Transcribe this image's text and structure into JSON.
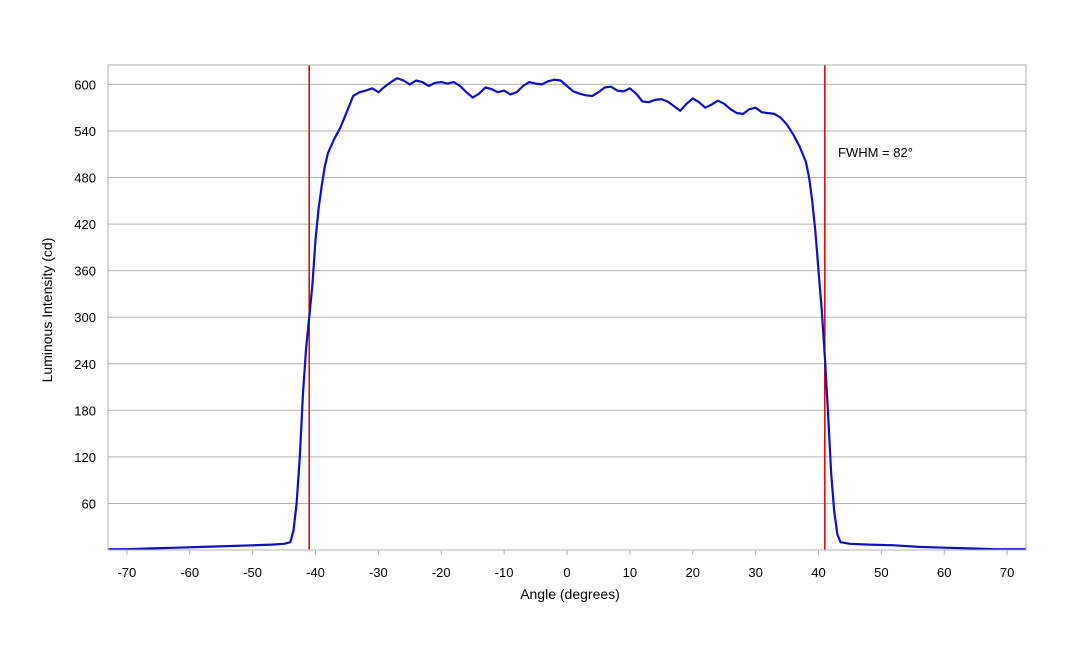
{
  "chart_data": {
    "type": "line",
    "title": "",
    "xlabel": "Angle (degrees)",
    "ylabel": "Luminous Intensity (cd)",
    "xlim": [
      -73,
      73
    ],
    "ylim": [
      0,
      625
    ],
    "x_ticks": [
      -70,
      -60,
      -50,
      -40,
      -30,
      -20,
      -10,
      0,
      10,
      20,
      30,
      40,
      50,
      60,
      70
    ],
    "y_ticks": [
      60,
      120,
      180,
      240,
      300,
      360,
      420,
      480,
      540,
      600
    ],
    "grid": "horizontal",
    "legend": "none",
    "series": [
      {
        "color": "#1010c0",
        "points": [
          [
            -73,
            1
          ],
          [
            -70,
            1
          ],
          [
            -66,
            2
          ],
          [
            -62,
            3
          ],
          [
            -58,
            4
          ],
          [
            -54,
            5
          ],
          [
            -50,
            6
          ],
          [
            -47,
            7
          ],
          [
            -45,
            8
          ],
          [
            -44,
            10
          ],
          [
            -43.5,
            25
          ],
          [
            -43,
            60
          ],
          [
            -42.5,
            120
          ],
          [
            -42,
            200
          ],
          [
            -41.5,
            260
          ],
          [
            -41,
            300
          ],
          [
            -40.5,
            340
          ],
          [
            -40,
            400
          ],
          [
            -39.5,
            440
          ],
          [
            -39,
            470
          ],
          [
            -38.5,
            495
          ],
          [
            -38,
            512
          ],
          [
            -37,
            530
          ],
          [
            -36,
            545
          ],
          [
            -35,
            565
          ],
          [
            -34,
            585
          ],
          [
            -33,
            590
          ],
          [
            -32,
            592
          ],
          [
            -31,
            595
          ],
          [
            -30,
            590
          ],
          [
            -29,
            597
          ],
          [
            -28,
            603
          ],
          [
            -27,
            608
          ],
          [
            -26,
            605
          ],
          [
            -25,
            600
          ],
          [
            -24,
            605
          ],
          [
            -23,
            603
          ],
          [
            -22,
            598
          ],
          [
            -21,
            602
          ],
          [
            -20,
            603
          ],
          [
            -19,
            601
          ],
          [
            -18,
            603
          ],
          [
            -17,
            598
          ],
          [
            -16,
            590
          ],
          [
            -15,
            583
          ],
          [
            -14,
            588
          ],
          [
            -13,
            596
          ],
          [
            -12,
            594
          ],
          [
            -11,
            590
          ],
          [
            -10,
            592
          ],
          [
            -9,
            587
          ],
          [
            -8,
            590
          ],
          [
            -7,
            598
          ],
          [
            -6,
            603
          ],
          [
            -5,
            601
          ],
          [
            -4,
            600
          ],
          [
            -3,
            604
          ],
          [
            -2,
            606
          ],
          [
            -1,
            605
          ],
          [
            0,
            598
          ],
          [
            1,
            591
          ],
          [
            2,
            588
          ],
          [
            3,
            586
          ],
          [
            4,
            585
          ],
          [
            5,
            590
          ],
          [
            6,
            596
          ],
          [
            7,
            597
          ],
          [
            8,
            592
          ],
          [
            9,
            591
          ],
          [
            10,
            595
          ],
          [
            11,
            588
          ],
          [
            12,
            578
          ],
          [
            13,
            577
          ],
          [
            14,
            580
          ],
          [
            15,
            581
          ],
          [
            16,
            578
          ],
          [
            17,
            572
          ],
          [
            18,
            566
          ],
          [
            19,
            575
          ],
          [
            20,
            582
          ],
          [
            21,
            577
          ],
          [
            22,
            570
          ],
          [
            23,
            574
          ],
          [
            24,
            579
          ],
          [
            25,
            575
          ],
          [
            26,
            568
          ],
          [
            27,
            563
          ],
          [
            28,
            562
          ],
          [
            29,
            568
          ],
          [
            30,
            570
          ],
          [
            31,
            564
          ],
          [
            32,
            563
          ],
          [
            33,
            562
          ],
          [
            34,
            557
          ],
          [
            35,
            548
          ],
          [
            36,
            535
          ],
          [
            37,
            520
          ],
          [
            38,
            500
          ],
          [
            38.5,
            480
          ],
          [
            39,
            450
          ],
          [
            39.5,
            410
          ],
          [
            40,
            360
          ],
          [
            40.5,
            310
          ],
          [
            41,
            250
          ],
          [
            41.5,
            180
          ],
          [
            42,
            100
          ],
          [
            42.5,
            50
          ],
          [
            43,
            20
          ],
          [
            43.5,
            10
          ],
          [
            45,
            8
          ],
          [
            48,
            7
          ],
          [
            52,
            6
          ],
          [
            56,
            4
          ],
          [
            60,
            3
          ],
          [
            64,
            2
          ],
          [
            68,
            1
          ],
          [
            73,
            1
          ]
        ]
      }
    ],
    "vertical_lines": [
      -41,
      41
    ],
    "vline_color": "#e00000",
    "annotation": "FWHM = 82°"
  }
}
